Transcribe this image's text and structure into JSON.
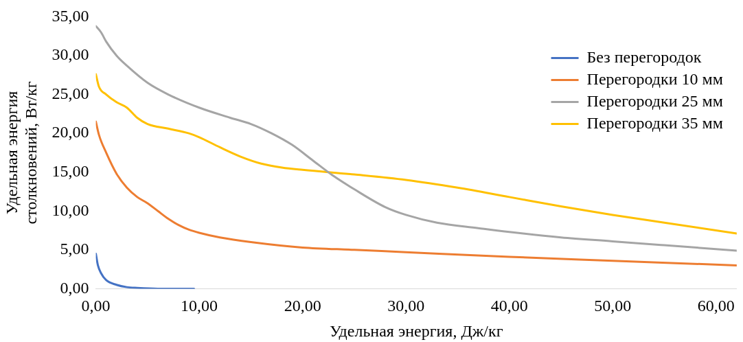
{
  "chart_data": {
    "type": "line",
    "xlabel": "Удельная энергия, Дж/кг",
    "ylabel": "Удельная энергия столкновений, Вт/кг",
    "xlim": [
      0,
      62
    ],
    "ylim": [
      0,
      35
    ],
    "xticks": [
      {
        "value": 0,
        "label": "0,00"
      },
      {
        "value": 10,
        "label": "10,00"
      },
      {
        "value": 20,
        "label": "20,00"
      },
      {
        "value": 30,
        "label": "30,00"
      },
      {
        "value": 40,
        "label": "40,00"
      },
      {
        "value": 50,
        "label": "50,00"
      },
      {
        "value": 60,
        "label": "60,00"
      }
    ],
    "yticks": [
      {
        "value": 0,
        "label": "0,00"
      },
      {
        "value": 5,
        "label": "5,00"
      },
      {
        "value": 10,
        "label": "10,00"
      },
      {
        "value": 15,
        "label": "15,00"
      },
      {
        "value": 20,
        "label": "20,00"
      },
      {
        "value": 25,
        "label": "25,00"
      },
      {
        "value": 30,
        "label": "30,00"
      },
      {
        "value": 35,
        "label": "35,00"
      }
    ],
    "grid": false,
    "legend": "top right",
    "marker": "none",
    "line_style": "solid",
    "series": [
      {
        "name": "Без перегородок",
        "color": "#4472c4",
        "x": [
          0,
          0.2,
          0.5,
          1,
          2,
          3,
          4,
          6,
          9.5
        ],
        "values": [
          4.5,
          3,
          2,
          1.1,
          0.5,
          0.2,
          0.1,
          0,
          0
        ]
      },
      {
        "name": "Перегородки 10 мм",
        "color": "#ed7d31",
        "x": [
          0,
          0.3,
          1,
          2,
          3,
          4,
          5,
          6,
          7,
          8,
          9,
          10,
          12,
          15,
          20,
          25,
          30,
          40,
          50,
          62
        ],
        "values": [
          21.5,
          19.8,
          17.5,
          14.8,
          13,
          11.8,
          11,
          10,
          9,
          8.2,
          7.6,
          7.2,
          6.6,
          6,
          5.3,
          5,
          4.7,
          4.1,
          3.6,
          3
        ]
      },
      {
        "name": "Перегородки 25 мм",
        "color": "#a5a5a5",
        "x": [
          0,
          0.5,
          1,
          2,
          3,
          5,
          7,
          10,
          13,
          15,
          17,
          19,
          21,
          23,
          25,
          28,
          30,
          33,
          37,
          40,
          45,
          50,
          55,
          62
        ],
        "values": [
          33.8,
          33,
          31.8,
          30,
          28.7,
          26.5,
          25,
          23.3,
          22,
          21.2,
          20,
          18.5,
          16.5,
          14.5,
          12.8,
          10.5,
          9.5,
          8.5,
          7.8,
          7.3,
          6.6,
          6.1,
          5.6,
          4.9
        ]
      },
      {
        "name": "Перегородки 35 мм",
        "color": "#ffc000",
        "x": [
          0,
          0.3,
          1,
          2,
          3,
          4,
          5,
          7,
          9,
          10,
          12,
          14,
          16,
          18,
          20,
          25,
          30,
          35,
          40,
          45,
          50,
          55,
          62
        ],
        "values": [
          27.6,
          26,
          25,
          24,
          23.3,
          22,
          21.2,
          20.6,
          20,
          19.5,
          18.2,
          17,
          16.1,
          15.6,
          15.3,
          14.7,
          14,
          13,
          11.8,
          10.6,
          9.5,
          8.5,
          7.1
        ]
      }
    ]
  }
}
